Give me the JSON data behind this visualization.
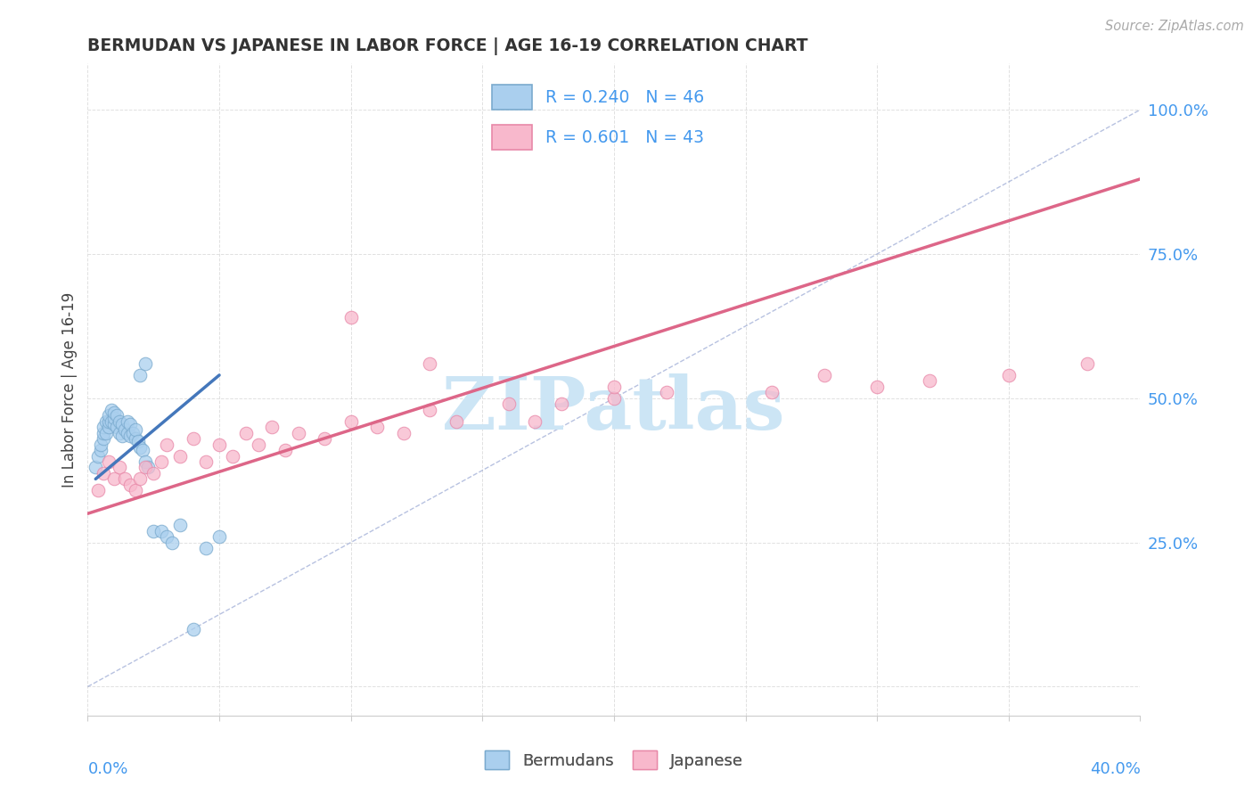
{
  "title": "BERMUDAN VS JAPANESE IN LABOR FORCE | AGE 16-19 CORRELATION CHART",
  "source": "Source: ZipAtlas.com",
  "ylabel": "In Labor Force | Age 16-19",
  "xlim": [
    0.0,
    0.4
  ],
  "ylim": [
    -0.05,
    1.08
  ],
  "yticks": [
    0.0,
    0.25,
    0.5,
    0.75,
    1.0
  ],
  "ytick_labels": [
    "",
    "25.0%",
    "50.0%",
    "75.0%",
    "100.0%"
  ],
  "xtick_vals": [
    0.0,
    0.05,
    0.1,
    0.15,
    0.2,
    0.25,
    0.3,
    0.35,
    0.4
  ],
  "legend_r_blue": "R = 0.240",
  "legend_n_blue": "N = 46",
  "legend_r_pink": "R = 0.601",
  "legend_n_pink": "N = 43",
  "color_blue_fill": "#aacfee",
  "color_blue_edge": "#7aaace",
  "color_blue_line": "#4477bb",
  "color_pink_fill": "#f8b8cc",
  "color_pink_edge": "#e888a8",
  "color_pink_line": "#dd6688",
  "watermark_text": "ZIPatlas",
  "watermark_color": "#cce5f5",
  "bg_color": "#ffffff",
  "grid_color": "#dddddd",
  "title_color": "#333333",
  "tick_color": "#4499ee",
  "source_color": "#aaaaaa",
  "blue_dots_x": [
    0.003,
    0.004,
    0.005,
    0.005,
    0.006,
    0.006,
    0.006,
    0.007,
    0.007,
    0.008,
    0.008,
    0.008,
    0.009,
    0.009,
    0.01,
    0.01,
    0.01,
    0.011,
    0.011,
    0.012,
    0.012,
    0.013,
    0.013,
    0.014,
    0.015,
    0.015,
    0.016,
    0.016,
    0.017,
    0.018,
    0.018,
    0.019,
    0.02,
    0.021,
    0.022,
    0.023,
    0.025,
    0.028,
    0.03,
    0.032,
    0.035,
    0.04,
    0.045,
    0.05,
    0.02,
    0.022
  ],
  "blue_dots_y": [
    0.38,
    0.4,
    0.41,
    0.42,
    0.43,
    0.44,
    0.45,
    0.44,
    0.46,
    0.45,
    0.46,
    0.47,
    0.46,
    0.48,
    0.455,
    0.465,
    0.475,
    0.45,
    0.47,
    0.44,
    0.46,
    0.435,
    0.455,
    0.445,
    0.44,
    0.46,
    0.435,
    0.455,
    0.44,
    0.43,
    0.445,
    0.425,
    0.415,
    0.41,
    0.39,
    0.38,
    0.27,
    0.27,
    0.26,
    0.25,
    0.28,
    0.1,
    0.24,
    0.26,
    0.54,
    0.56
  ],
  "pink_dots_x": [
    0.004,
    0.006,
    0.008,
    0.01,
    0.012,
    0.014,
    0.016,
    0.018,
    0.02,
    0.022,
    0.025,
    0.028,
    0.03,
    0.035,
    0.04,
    0.045,
    0.05,
    0.055,
    0.06,
    0.065,
    0.07,
    0.075,
    0.08,
    0.09,
    0.1,
    0.11,
    0.12,
    0.13,
    0.14,
    0.16,
    0.17,
    0.18,
    0.2,
    0.22,
    0.26,
    0.28,
    0.3,
    0.32,
    0.35,
    0.38,
    0.1,
    0.13,
    0.2
  ],
  "pink_dots_y": [
    0.34,
    0.37,
    0.39,
    0.36,
    0.38,
    0.36,
    0.35,
    0.34,
    0.36,
    0.38,
    0.37,
    0.39,
    0.42,
    0.4,
    0.43,
    0.39,
    0.42,
    0.4,
    0.44,
    0.42,
    0.45,
    0.41,
    0.44,
    0.43,
    0.46,
    0.45,
    0.44,
    0.48,
    0.46,
    0.49,
    0.46,
    0.49,
    0.5,
    0.51,
    0.51,
    0.54,
    0.52,
    0.53,
    0.54,
    0.56,
    0.64,
    0.56,
    0.52
  ],
  "blue_line_x": [
    0.003,
    0.05
  ],
  "blue_line_y": [
    0.36,
    0.54
  ],
  "pink_line_x": [
    0.0,
    0.4
  ],
  "pink_line_y": [
    0.3,
    0.88
  ],
  "diag_line_x": [
    0.0,
    0.4
  ],
  "diag_line_y": [
    0.0,
    1.0
  ]
}
